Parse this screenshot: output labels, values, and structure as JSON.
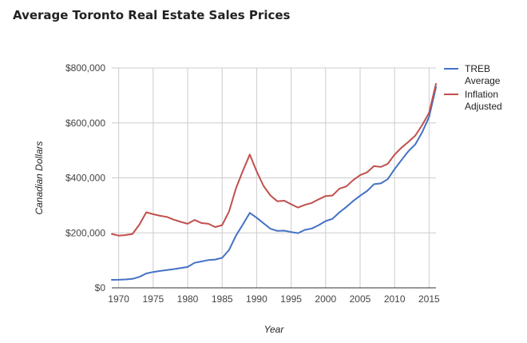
{
  "title": "Average Toronto Real Estate Sales Prices",
  "chart_data": {
    "type": "line",
    "title": "Average Toronto Real Estate Sales Prices",
    "xlabel": "Year",
    "ylabel": "Canadian Dollars",
    "xlim": [
      1969,
      2016
    ],
    "ylim": [
      0,
      800000
    ],
    "x_ticks": [
      1970,
      1975,
      1980,
      1985,
      1990,
      1995,
      2000,
      2005,
      2010,
      2015
    ],
    "x_tick_labels": [
      "1970",
      "1975",
      "1980",
      "1985",
      "1990",
      "1995",
      "2000",
      "2005",
      "2010",
      "2015"
    ],
    "y_ticks": [
      0,
      200000,
      400000,
      600000,
      800000
    ],
    "y_tick_labels": [
      "$0",
      "$200,000",
      "$400,000",
      "$600,000",
      "$800,000"
    ],
    "grid": true,
    "legend_position": "right",
    "x": [
      1969,
      1970,
      1971,
      1972,
      1973,
      1974,
      1975,
      1976,
      1977,
      1978,
      1979,
      1980,
      1981,
      1982,
      1983,
      1984,
      1985,
      1986,
      1987,
      1988,
      1989,
      1990,
      1991,
      1992,
      1993,
      1994,
      1995,
      1996,
      1997,
      1998,
      1999,
      2000,
      2001,
      2002,
      2003,
      2004,
      2005,
      2006,
      2007,
      2008,
      2009,
      2010,
      2011,
      2012,
      2013,
      2014,
      2015,
      2016
    ],
    "series": [
      {
        "name": "TREB Average",
        "color": "#4472c4",
        "values": [
          29000,
          29500,
          30500,
          32500,
          40000,
          52500,
          57500,
          61500,
          65000,
          68000,
          72000,
          76000,
          91000,
          96000,
          101000,
          103000,
          109000,
          138000,
          190000,
          230000,
          273000,
          255000,
          235000,
          215000,
          207000,
          208000,
          203000,
          199000,
          211000,
          216000,
          228000,
          243000,
          251000,
          275000,
          294000,
          316000,
          335000,
          352000,
          377000,
          380000,
          395000,
          432000,
          465000,
          497000,
          522000,
          566000,
          622000,
          730000
        ]
      },
      {
        "name": "Inflation Adjusted",
        "color": "#c0504d",
        "values": [
          196000,
          190000,
          192000,
          196000,
          230000,
          275000,
          268000,
          262000,
          258000,
          248000,
          240000,
          233000,
          247000,
          236000,
          233000,
          221000,
          228000,
          278000,
          362000,
          425000,
          485000,
          424000,
          371000,
          336000,
          315000,
          317000,
          304000,
          292000,
          302000,
          309000,
          322000,
          334000,
          336000,
          361000,
          369000,
          392000,
          410000,
          420000,
          443000,
          440000,
          451000,
          485000,
          510000,
          531000,
          554000,
          592000,
          637000,
          742000
        ]
      }
    ]
  }
}
